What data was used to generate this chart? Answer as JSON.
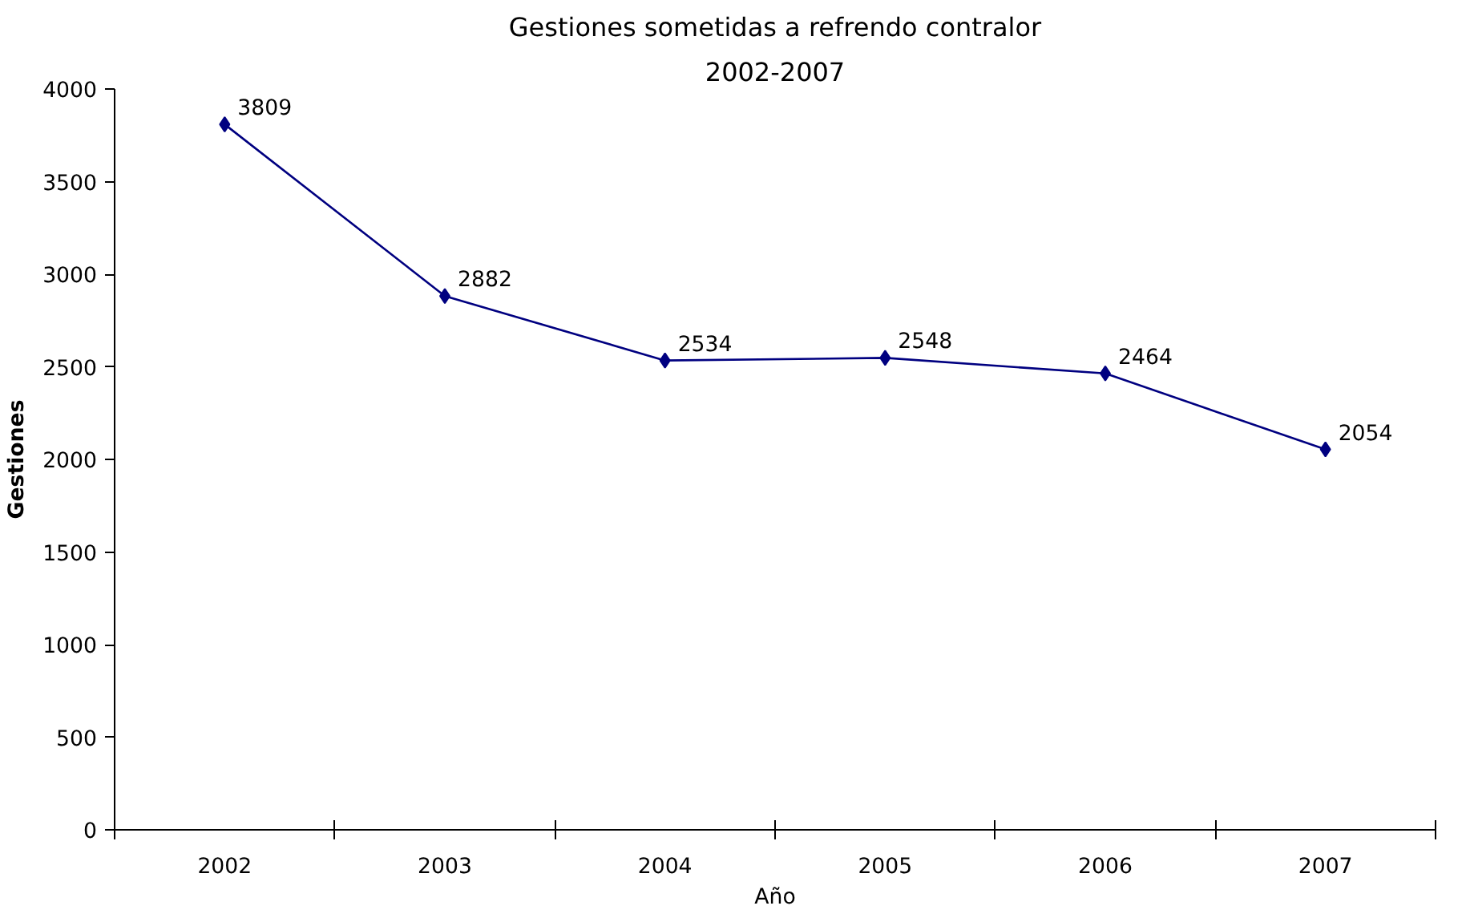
{
  "chart_data": {
    "type": "line",
    "title": "Gestiones sometidas a refrendo contralor",
    "subtitle": "2002-2007",
    "xlabel": "Año",
    "ylabel": "Gestiones",
    "categories": [
      "2002",
      "2003",
      "2004",
      "2005",
      "2006",
      "2007"
    ],
    "series": [
      {
        "color": "#000080",
        "values": [
          3809,
          2882,
          2534,
          2548,
          2464,
          2054
        ]
      }
    ],
    "ylim": [
      0,
      4000
    ],
    "yticks": [
      0,
      500,
      1000,
      1500,
      2000,
      2500,
      3000,
      3500,
      4000
    ],
    "grid": false,
    "marker": "diamond",
    "line_style": "solid",
    "data_labels": true
  }
}
